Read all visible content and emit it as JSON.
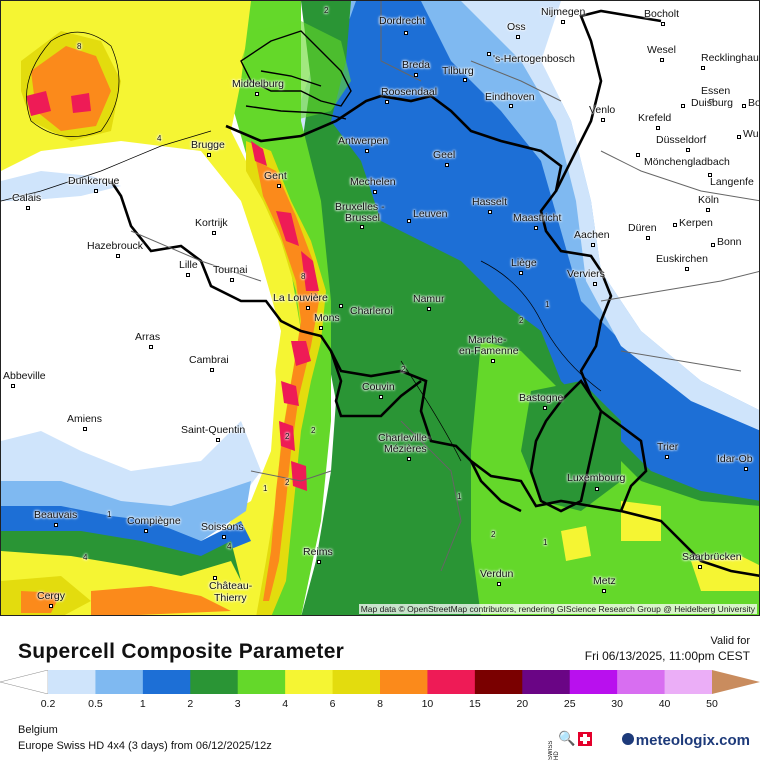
{
  "title": "Supercell Composite Parameter",
  "valid_label": "Valid for",
  "valid_time": "Fri 06/13/2025, 11:00pm CEST",
  "region": "Belgium",
  "model_line": "Europe Swiss HD 4x4 (3 days) from  06/12/2025/12z",
  "brand": "meteologix.com",
  "attribution": "Map data © OpenStreetMap contributors, rendering GIScience Research Group @ Heidelberg University",
  "legend": {
    "ticks": [
      "0.2",
      "0.5",
      "1",
      "2",
      "3",
      "4",
      "6",
      "8",
      "10",
      "15",
      "20",
      "25",
      "30",
      "40",
      "50"
    ],
    "colors": [
      "#cfe4fb",
      "#7fb9f1",
      "#1d6fd6",
      "#2a9535",
      "#64d82a",
      "#f5f533",
      "#e3dc0e",
      "#fb8a1b",
      "#ee1b56",
      "#7a0000",
      "#6a0585",
      "#b910ee",
      "#d86ef1",
      "#ebaef7",
      "#c98c5e"
    ]
  },
  "cities": [
    {
      "name": "Dordrecht"
    },
    {
      "name": "Nijmegen"
    },
    {
      "name": "Bocholt"
    },
    {
      "name": "Oss"
    },
    {
      "name": "Wesel"
    },
    {
      "name": "Breda"
    },
    {
      "name": "Tilburg"
    },
    {
      "name": "'s-Hertogenbosch"
    },
    {
      "name": "Recklinghau"
    },
    {
      "name": "Middelburg"
    },
    {
      "name": "Roosendaal"
    },
    {
      "name": "Essen"
    },
    {
      "name": "Eindhoven"
    },
    {
      "name": "Duisburg"
    },
    {
      "name": "Bo"
    },
    {
      "name": "Venlo"
    },
    {
      "name": "Krefeld"
    },
    {
      "name": "Wu"
    },
    {
      "name": "Brugge"
    },
    {
      "name": "Antwerpen"
    },
    {
      "name": "Düsseldorf"
    },
    {
      "name": "Geel"
    },
    {
      "name": "Mönchengladbach"
    },
    {
      "name": "Gent"
    },
    {
      "name": "Dunkerque"
    },
    {
      "name": "Mechelen"
    },
    {
      "name": "Langenfe"
    },
    {
      "name": "Calais"
    },
    {
      "name": "Hasselt"
    },
    {
      "name": "Köln"
    },
    {
      "name": "Bruxelles -"
    },
    {
      "name": "Brussel"
    },
    {
      "name": "Leuven"
    },
    {
      "name": "Maastricht"
    },
    {
      "name": "Kortrijk"
    },
    {
      "name": "Kerpen"
    },
    {
      "name": "Düren"
    },
    {
      "name": "Aachen"
    },
    {
      "name": "Bonn"
    },
    {
      "name": "Hazebrouck"
    },
    {
      "name": "Liège"
    },
    {
      "name": "Euskirchen"
    },
    {
      "name": "Lille"
    },
    {
      "name": "Tournai"
    },
    {
      "name": "Verviers"
    },
    {
      "name": "La Louvière"
    },
    {
      "name": "Namur"
    },
    {
      "name": "Charleroi"
    },
    {
      "name": "Mons"
    },
    {
      "name": "Arras"
    },
    {
      "name": "Marche-"
    },
    {
      "name": "en-Famenne"
    },
    {
      "name": "Cambrai"
    },
    {
      "name": "Abbeville"
    },
    {
      "name": "Couvin"
    },
    {
      "name": "Bastogne"
    },
    {
      "name": "Amiens"
    },
    {
      "name": "Saint-Quentin"
    },
    {
      "name": "Charleville-"
    },
    {
      "name": "Mézières"
    },
    {
      "name": "Trier"
    },
    {
      "name": "Idar-Ob"
    },
    {
      "name": "Luxembourg"
    },
    {
      "name": "Beauvais"
    },
    {
      "name": "Compiègne"
    },
    {
      "name": "Soissons"
    },
    {
      "name": "Reims"
    },
    {
      "name": "Saarbrücken"
    },
    {
      "name": "Verdun"
    },
    {
      "name": "Château-"
    },
    {
      "name": "Thierry"
    },
    {
      "name": "Cergy"
    },
    {
      "name": "Metz"
    }
  ],
  "contour_labels": [
    "8",
    "4",
    "2",
    "2",
    "8",
    "2",
    "2",
    "1",
    "1",
    "2",
    "1",
    "4",
    "1",
    "4",
    "1",
    "2",
    "2"
  ]
}
